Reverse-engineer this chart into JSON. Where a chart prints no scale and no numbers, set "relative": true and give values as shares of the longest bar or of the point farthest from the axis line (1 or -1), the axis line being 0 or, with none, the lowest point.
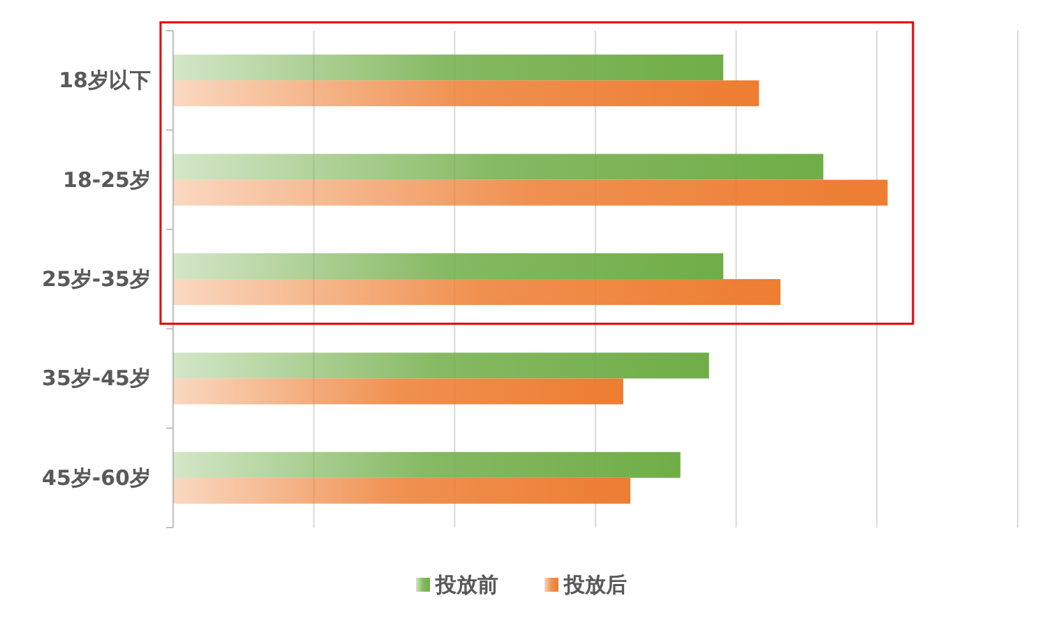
{
  "chart_data": {
    "type": "bar",
    "orientation": "horizontal",
    "relative": true,
    "grid": "x",
    "legend": "bottom",
    "categories": [
      "18岁以下",
      "18-25岁",
      "25岁-35岁",
      "35岁-45岁",
      "45岁-60岁"
    ],
    "series": [
      {
        "name": "投放前",
        "color": "#70ad47",
        "values": [
          0.77,
          0.91,
          0.77,
          0.75,
          0.71
        ]
      },
      {
        "name": "投放后",
        "color": "#ed7d31",
        "values": [
          0.82,
          1,
          0.85,
          0.63,
          0.64
        ]
      }
    ]
  }
}
